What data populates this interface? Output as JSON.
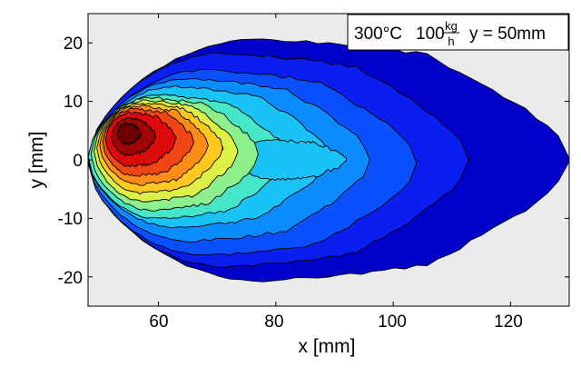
{
  "chart_data": {
    "type": "filled-contour",
    "xlabel": "x [mm]",
    "ylabel": "y [mm]",
    "xlim": [
      48,
      130
    ],
    "ylim": [
      -25,
      25
    ],
    "xticks": [
      60,
      80,
      100,
      120
    ],
    "yticks": [
      20,
      10,
      0,
      -10,
      -20
    ],
    "xtick_labels": [
      "60",
      "80",
      "100",
      "120"
    ],
    "ytick_labels": [
      "20",
      "10",
      "0",
      "-10",
      "-20"
    ],
    "annotation": {
      "temperature": "300°C",
      "flow_value": "100",
      "flow_unit_numerator": "kg",
      "flow_unit_denominator": "h",
      "position": "y = 50mm"
    },
    "colormap": "jet",
    "levels": [
      {
        "level": 1,
        "color": "#0000c8",
        "x_extent": [
          48.0,
          130.0
        ],
        "y_half_width": 21.5,
        "y_center": 0.0
      },
      {
        "level": 2,
        "color": "#0a1ef0",
        "x_extent": [
          48.0,
          113.0
        ],
        "y_half_width": 19.0,
        "y_center": 0.0
      },
      {
        "level": 3,
        "color": "#0a50ff",
        "x_extent": [
          48.0,
          104.0
        ],
        "y_half_width": 16.5,
        "y_center": -0.5
      },
      {
        "level": 4,
        "color": "#0a8cff",
        "x_extent": [
          48.0,
          96.0
        ],
        "y_half_width": 14.5,
        "y_center": 0.0
      },
      {
        "level": 5,
        "color": "#19c3f5",
        "x_extent": [
          48.0,
          89.0
        ],
        "y_half_width": 12.5,
        "y_center": 0.5
      },
      {
        "level": 6,
        "color": "#46e6c8",
        "x_extent": [
          48.0,
          82.0
        ],
        "y_half_width": 11.0,
        "y_center": 0.5
      },
      {
        "level": 7,
        "color": "#8cf08c",
        "x_extent": [
          48.5,
          77.0
        ],
        "y_half_width": 10.0,
        "y_center": 1.0
      },
      {
        "level": 8,
        "color": "#dcf046",
        "x_extent": [
          49.0,
          73.5
        ],
        "y_half_width": 9.0,
        "y_center": 1.5
      },
      {
        "level": 9,
        "color": "#ffc81e",
        "x_extent": [
          49.5,
          71.0
        ],
        "y_half_width": 8.0,
        "y_center": 2.0
      },
      {
        "level": 10,
        "color": "#ff8c14",
        "x_extent": [
          50.0,
          68.5
        ],
        "y_half_width": 7.0,
        "y_center": 2.5
      },
      {
        "level": 11,
        "color": "#f04614",
        "x_extent": [
          50.5,
          66.0
        ],
        "y_half_width": 6.0,
        "y_center": 3.0
      },
      {
        "level": 12,
        "color": "#dc0a0a",
        "x_extent": [
          51.0,
          63.0
        ],
        "y_half_width": 4.8,
        "y_center": 3.5
      },
      {
        "level": 13,
        "color": "#a00505",
        "x_extent": [
          52.0,
          59.5
        ],
        "y_half_width": 3.2,
        "y_center": 4.0
      },
      {
        "level": 14,
        "color": "#6e0000",
        "x_extent": [
          53.0,
          57.0
        ],
        "y_half_width": 1.8,
        "y_center": 4.5
      }
    ],
    "inner_low_region": {
      "color": "#19c3f5",
      "x_extent": [
        73.0,
        92.0
      ],
      "y_half_width": 3.5,
      "y_center": 0.0
    }
  }
}
